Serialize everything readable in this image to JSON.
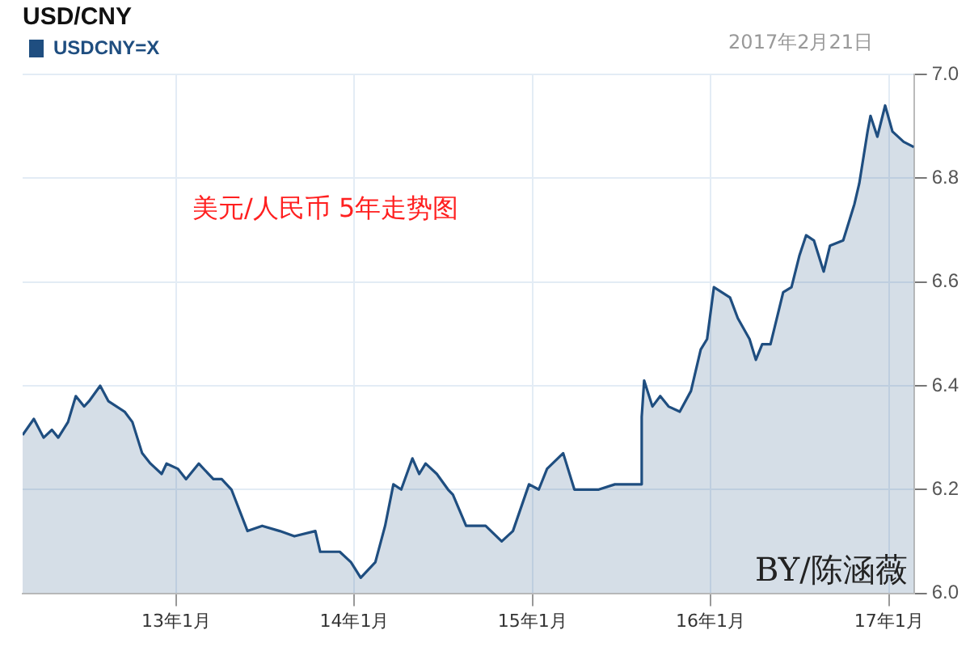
{
  "chart_data": {
    "type": "area",
    "title": "USD/CNY",
    "legend": "top left",
    "grid": true,
    "marker": "none",
    "annotations": [
      "2017年2月21日",
      "美元/人民币 5年走势图",
      "BY/陈涵薇"
    ],
    "xlim": [
      "2012-02-21",
      "2017-02-21"
    ],
    "xticks": [
      {
        "value": "2013-01-01",
        "label": "13年1月"
      },
      {
        "value": "2014-01-01",
        "label": "14年1月"
      },
      {
        "value": "2015-01-01",
        "label": "15年1月"
      },
      {
        "value": "2016-01-01",
        "label": "16年1月"
      },
      {
        "value": "2017-01-01",
        "label": "17年1月"
      }
    ],
    "ylim": [
      6.0,
      7.0
    ],
    "yticks": [
      {
        "value": 6.0,
        "label": "6.0"
      },
      {
        "value": 6.2,
        "label": "6.2"
      },
      {
        "value": 6.4,
        "label": "6.4"
      },
      {
        "value": 6.6,
        "label": "6.6"
      },
      {
        "value": 6.8,
        "label": "6.8"
      },
      {
        "value": 7.0,
        "label": "7.0"
      }
    ],
    "series": [
      {
        "name": "USDCNY=X",
        "color": "#1f4e80",
        "x": [
          "2012-02-21",
          "2012-03-15",
          "2012-04-04",
          "2012-04-21",
          "2012-05-04",
          "2012-05-24",
          "2012-06-09",
          "2012-06-26",
          "2012-07-06",
          "2012-07-29",
          "2012-08-15",
          "2012-09-17",
          "2012-10-03",
          "2012-10-23",
          "2012-11-09",
          "2012-12-02",
          "2012-12-12",
          "2013-01-04",
          "2013-01-21",
          "2013-02-16",
          "2013-03-18",
          "2013-04-04",
          "2013-04-24",
          "2013-05-27",
          "2013-06-26",
          "2013-08-01",
          "2013-08-31",
          "2013-10-13",
          "2013-10-23",
          "2013-12-02",
          "2013-12-25",
          "2014-01-14",
          "2014-02-13",
          "2014-03-05",
          "2014-03-22",
          "2014-04-07",
          "2014-04-30",
          "2014-05-14",
          "2014-05-27",
          "2014-06-19",
          "2014-07-12",
          "2014-07-22",
          "2014-08-18",
          "2014-08-25",
          "2014-09-17",
          "2014-09-27",
          "2014-10-30",
          "2014-11-22",
          "2014-12-25",
          "2015-01-14",
          "2015-01-31",
          "2015-03-05",
          "2015-03-28",
          "2015-05-17",
          "2015-06-19",
          "2015-08-10",
          "2015-08-13",
          "2015-08-18",
          "2015-09-04",
          "2015-09-20",
          "2015-10-07",
          "2015-10-30",
          "2015-11-22",
          "2015-12-12",
          "2015-12-25",
          "2016-01-08",
          "2016-02-10",
          "2016-02-26",
          "2016-03-21",
          "2016-04-03",
          "2016-04-16",
          "2016-05-03",
          "2016-05-29",
          "2016-06-15",
          "2016-07-01",
          "2016-07-15",
          "2016-07-31",
          "2016-08-20",
          "2016-09-02",
          "2016-09-29",
          "2016-10-22",
          "2016-11-01",
          "2016-11-18",
          "2016-11-24",
          "2016-12-08",
          "2016-12-24",
          "2017-01-08",
          "2017-01-31",
          "2017-02-21"
        ],
        "values": [
          6.305,
          6.336,
          6.3,
          6.315,
          6.3,
          6.33,
          6.38,
          6.36,
          6.37,
          6.4,
          6.37,
          6.35,
          6.33,
          6.27,
          6.25,
          6.23,
          6.25,
          6.24,
          6.22,
          6.25,
          6.22,
          6.22,
          6.2,
          6.12,
          6.13,
          6.12,
          6.11,
          6.12,
          6.08,
          6.08,
          6.06,
          6.03,
          6.06,
          6.13,
          6.21,
          6.2,
          6.26,
          6.23,
          6.25,
          6.23,
          6.2,
          6.19,
          6.13,
          6.13,
          6.13,
          6.13,
          6.1,
          6.12,
          6.21,
          6.2,
          6.24,
          6.27,
          6.2,
          6.2,
          6.21,
          6.21,
          6.34,
          6.41,
          6.36,
          6.38,
          6.36,
          6.35,
          6.39,
          6.47,
          6.49,
          6.59,
          6.57,
          6.53,
          6.49,
          6.45,
          6.48,
          6.48,
          6.58,
          6.59,
          6.65,
          6.69,
          6.68,
          6.62,
          6.67,
          6.68,
          6.75,
          6.79,
          6.89,
          6.92,
          6.88,
          6.94,
          6.89,
          6.87,
          6.86
        ]
      }
    ]
  }
}
